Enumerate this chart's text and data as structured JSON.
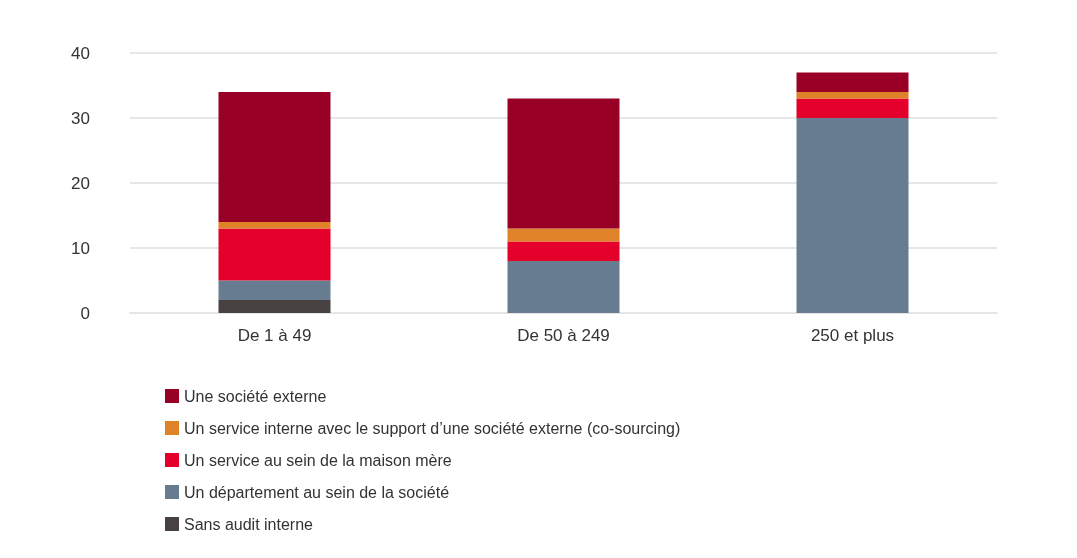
{
  "chart_data": {
    "type": "bar",
    "stacked": true,
    "categories": [
      "De 1 à 49",
      "De 50 à 249",
      "250 et plus"
    ],
    "series": [
      {
        "name": "Sans audit interne",
        "color": "#474241",
        "values": [
          2,
          null,
          null
        ]
      },
      {
        "name": "Un département au sein de la société",
        "color": "#687c91",
        "values": [
          3,
          8,
          30
        ]
      },
      {
        "name": "Un service au sein de la maison mère",
        "color": "#e4002b",
        "values": [
          8,
          3,
          3
        ]
      },
      {
        "name": "Un service interne avec le support d’une société externe (co-sourcing)",
        "color": "#e08228",
        "values": [
          1,
          2,
          1
        ]
      },
      {
        "name": "Une société externe",
        "color": "#990026",
        "values": [
          20,
          20,
          3
        ]
      }
    ],
    "ylim": [
      0,
      40
    ],
    "yticks": [
      0,
      10,
      20,
      30,
      40
    ],
    "grid": "y",
    "legend": "bottom left"
  }
}
